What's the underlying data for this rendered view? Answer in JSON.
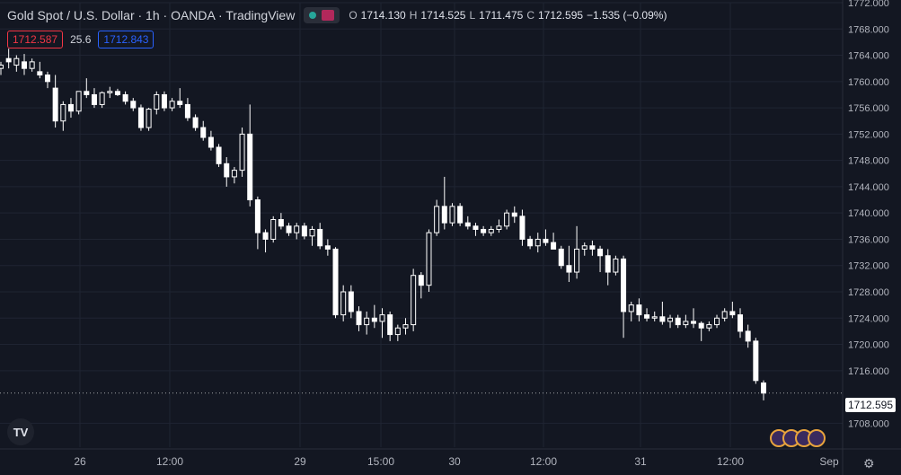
{
  "header": {
    "title": "Gold Spot / U.S. Dollar · 1h · OANDA · TradingView",
    "ohlc": {
      "o_label": "O",
      "o": "1714.130",
      "h_label": "H",
      "h": "1714.525",
      "l_label": "L",
      "l": "1711.475",
      "c_label": "C",
      "c": "1712.595",
      "change": "−1.535 (−0.09%)"
    }
  },
  "quotes": {
    "bid": "1712.587",
    "spread": "25.6",
    "ask": "1712.843"
  },
  "price_tag": "1712.595",
  "logo_text": "TV",
  "settings_icon": "⚙",
  "chart_data": {
    "type": "candlestick",
    "ylim": [
      1706,
      1772
    ],
    "y_ticks": [
      "1772.000",
      "1768.000",
      "1764.000",
      "1760.000",
      "1756.000",
      "1752.000",
      "1748.000",
      "1744.000",
      "1740.000",
      "1736.000",
      "1732.000",
      "1728.000",
      "1724.000",
      "1720.000",
      "1716.000",
      "1708.000"
    ],
    "x_ticks": [
      "26",
      "12:00",
      "29",
      "15:00",
      "30",
      "12:00",
      "31",
      "12:00",
      "Sep"
    ],
    "candles": [
      [
        1762.0,
        1763.0,
        1761.0,
        1762.5
      ],
      [
        1763.5,
        1765.0,
        1762.0,
        1763.0
      ],
      [
        1762.5,
        1764.0,
        1761.5,
        1763.5
      ],
      [
        1763.0,
        1764.2,
        1761.0,
        1762.0
      ],
      [
        1762.0,
        1763.5,
        1761.5,
        1763.0
      ],
      [
        1761.5,
        1763.0,
        1760.5,
        1761.0
      ],
      [
        1761.0,
        1761.5,
        1759.0,
        1760.0
      ],
      [
        1759.0,
        1761.0,
        1753.0,
        1754.0
      ],
      [
        1754.0,
        1757.0,
        1752.5,
        1756.5
      ],
      [
        1756.5,
        1757.5,
        1754.5,
        1755.5
      ],
      [
        1755.5,
        1758.5,
        1755.0,
        1758.5
      ],
      [
        1758.5,
        1760.5,
        1757.5,
        1758.0
      ],
      [
        1758.0,
        1759.0,
        1756.0,
        1756.5
      ],
      [
        1756.5,
        1758.5,
        1756.0,
        1758.3
      ],
      [
        1758.3,
        1759.2,
        1757.5,
        1758.5
      ],
      [
        1758.5,
        1758.9,
        1757.8,
        1758.0
      ],
      [
        1758.0,
        1758.5,
        1756.5,
        1757.0
      ],
      [
        1757.0,
        1757.5,
        1755.5,
        1756.0
      ],
      [
        1756.0,
        1756.5,
        1752.5,
        1753.0
      ],
      [
        1753.0,
        1756.0,
        1752.5,
        1755.8
      ],
      [
        1755.8,
        1758.5,
        1755.0,
        1758.0
      ],
      [
        1758.0,
        1758.5,
        1755.5,
        1756.0
      ],
      [
        1756.0,
        1757.5,
        1755.5,
        1757.0
      ],
      [
        1757.0,
        1759.0,
        1756.0,
        1756.5
      ],
      [
        1756.5,
        1757.5,
        1754.0,
        1754.5
      ],
      [
        1754.5,
        1755.0,
        1752.5,
        1753.0
      ],
      [
        1753.0,
        1754.0,
        1751.0,
        1751.5
      ],
      [
        1751.5,
        1752.5,
        1749.5,
        1750.0
      ],
      [
        1750.0,
        1750.5,
        1747.0,
        1747.5
      ],
      [
        1747.5,
        1748.5,
        1744.0,
        1745.5
      ],
      [
        1745.5,
        1747.0,
        1744.5,
        1746.5
      ],
      [
        1746.5,
        1753.0,
        1745.5,
        1752.0
      ],
      [
        1752.0,
        1756.5,
        1741.0,
        1742.0
      ],
      [
        1742.0,
        1742.5,
        1734.5,
        1737.0
      ],
      [
        1737.0,
        1737.5,
        1734.0,
        1736.0
      ],
      [
        1736.0,
        1739.5,
        1735.5,
        1739.0
      ],
      [
        1739.0,
        1740.0,
        1737.5,
        1738.0
      ],
      [
        1738.0,
        1738.5,
        1736.5,
        1737.0
      ],
      [
        1737.0,
        1738.5,
        1736.0,
        1738.0
      ],
      [
        1738.0,
        1738.5,
        1736.0,
        1736.5
      ],
      [
        1736.5,
        1738.0,
        1735.0,
        1737.5
      ],
      [
        1737.5,
        1738.5,
        1734.5,
        1735.0
      ],
      [
        1735.0,
        1736.0,
        1733.5,
        1734.5
      ],
      [
        1734.5,
        1734.8,
        1724.0,
        1724.5
      ],
      [
        1724.5,
        1729.0,
        1723.5,
        1728.0
      ],
      [
        1728.0,
        1729.0,
        1724.0,
        1725.0
      ],
      [
        1725.0,
        1725.8,
        1722.0,
        1723.0
      ],
      [
        1723.0,
        1725.0,
        1721.5,
        1724.0
      ],
      [
        1724.0,
        1726.0,
        1722.5,
        1723.5
      ],
      [
        1723.5,
        1725.5,
        1721.0,
        1724.5
      ],
      [
        1724.5,
        1725.0,
        1720.5,
        1721.5
      ],
      [
        1721.5,
        1723.0,
        1720.5,
        1722.5
      ],
      [
        1722.5,
        1724.0,
        1721.5,
        1723.0
      ],
      [
        1723.0,
        1731.5,
        1722.0,
        1730.5
      ],
      [
        1730.5,
        1731.0,
        1727.0,
        1729.0
      ],
      [
        1729.0,
        1737.5,
        1728.0,
        1737.0
      ],
      [
        1737.0,
        1742.0,
        1736.5,
        1741.0
      ],
      [
        1741.0,
        1745.5,
        1737.5,
        1738.5
      ],
      [
        1738.5,
        1741.5,
        1738.0,
        1741.0
      ],
      [
        1741.0,
        1741.5,
        1738.0,
        1738.5
      ],
      [
        1738.5,
        1739.5,
        1737.5,
        1738.0
      ],
      [
        1738.0,
        1738.5,
        1736.5,
        1737.5
      ],
      [
        1737.5,
        1738.0,
        1736.5,
        1737.0
      ],
      [
        1737.0,
        1738.0,
        1736.5,
        1737.5
      ],
      [
        1737.5,
        1739.0,
        1737.0,
        1738.0
      ],
      [
        1738.0,
        1740.5,
        1737.5,
        1740.0
      ],
      [
        1740.0,
        1741.0,
        1738.5,
        1739.5
      ],
      [
        1739.5,
        1740.5,
        1735.0,
        1736.0
      ],
      [
        1736.0,
        1736.5,
        1734.5,
        1735.0
      ],
      [
        1735.0,
        1737.0,
        1734.0,
        1736.0
      ],
      [
        1736.0,
        1737.5,
        1735.0,
        1735.5
      ],
      [
        1735.5,
        1737.0,
        1734.5,
        1734.5
      ],
      [
        1734.5,
        1735.0,
        1731.5,
        1732.0
      ],
      [
        1732.0,
        1735.0,
        1729.5,
        1731.0
      ],
      [
        1731.0,
        1738.0,
        1730.0,
        1734.5
      ],
      [
        1734.5,
        1735.5,
        1733.5,
        1735.0
      ],
      [
        1735.0,
        1735.8,
        1733.5,
        1734.5
      ],
      [
        1734.5,
        1735.0,
        1731.0,
        1733.5
      ],
      [
        1733.5,
        1734.5,
        1729.0,
        1731.0
      ],
      [
        1731.0,
        1733.5,
        1730.5,
        1733.0
      ],
      [
        1733.0,
        1733.5,
        1721.0,
        1725.0
      ],
      [
        1725.0,
        1726.5,
        1723.5,
        1726.0
      ],
      [
        1726.0,
        1727.0,
        1723.5,
        1724.5
      ],
      [
        1724.5,
        1725.5,
        1723.5,
        1724.0
      ],
      [
        1724.0,
        1725.0,
        1723.5,
        1724.2
      ],
      [
        1724.2,
        1726.5,
        1723.0,
        1723.5
      ],
      [
        1723.5,
        1724.5,
        1722.5,
        1724.0
      ],
      [
        1724.0,
        1724.5,
        1722.5,
        1723.0
      ],
      [
        1723.0,
        1724.5,
        1722.5,
        1723.5
      ],
      [
        1723.5,
        1725.5,
        1722.5,
        1723.2
      ],
      [
        1723.2,
        1723.5,
        1720.5,
        1722.5
      ],
      [
        1722.5,
        1723.5,
        1722.0,
        1723.0
      ],
      [
        1723.0,
        1724.5,
        1722.5,
        1724.0
      ],
      [
        1724.0,
        1725.5,
        1723.5,
        1725.0
      ],
      [
        1725.0,
        1726.5,
        1724.0,
        1724.5
      ],
      [
        1724.5,
        1725.5,
        1721.0,
        1722.0
      ],
      [
        1722.0,
        1723.0,
        1719.5,
        1720.5
      ],
      [
        1720.5,
        1721.0,
        1714.0,
        1714.5
      ],
      [
        1714.13,
        1714.525,
        1711.475,
        1712.595
      ]
    ]
  }
}
